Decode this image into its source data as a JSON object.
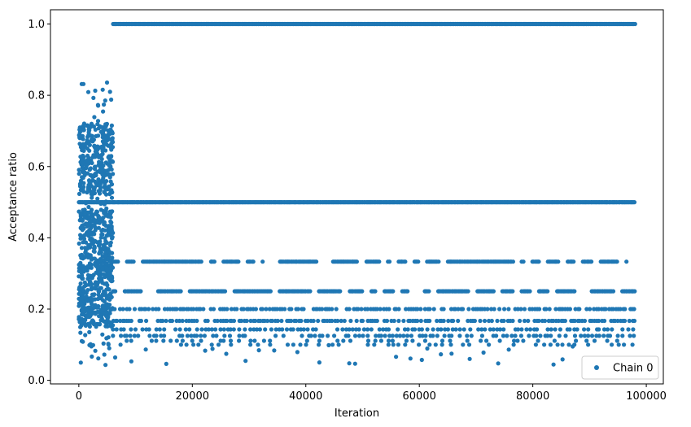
{
  "chart_data": {
    "type": "scatter",
    "title": "",
    "xlabel": "Iteration",
    "ylabel": "Acceptance ratio",
    "xlim": [
      -5000,
      103000
    ],
    "ylim": [
      -0.01,
      1.04
    ],
    "xticks": [
      0,
      20000,
      40000,
      60000,
      80000,
      100000
    ],
    "xtick_labels": [
      "0",
      "20000",
      "40000",
      "60000",
      "80000",
      "100000"
    ],
    "yticks": [
      0.0,
      0.2,
      0.4,
      0.6,
      0.8,
      1.0
    ],
    "ytick_labels": [
      "0.0",
      "0.2",
      "0.4",
      "0.6",
      "0.8",
      "1.0"
    ],
    "grid": false,
    "legend_position": "lower right",
    "color": "#1f77b4",
    "series": [
      {
        "name": "Chain 0",
        "marker": "circle",
        "segments": [
          {
            "x_range": [
              0,
              6000
            ],
            "distribution": "dense-uniform",
            "y_range": [
              0.04,
              0.84
            ]
          },
          {
            "x_range": [
              6000,
              98000
            ],
            "y": 1.0,
            "density": "continuous"
          },
          {
            "x_range": [
              0,
              98000
            ],
            "y": 0.5,
            "density": "continuous"
          },
          {
            "x_range": [
              6000,
              98000
            ],
            "y": 0.333,
            "density": "dense-with-gaps"
          },
          {
            "x_range": [
              6000,
              98000
            ],
            "y": 0.25,
            "density": "dense-with-gaps"
          },
          {
            "x_range": [
              6000,
              98000
            ],
            "y": 0.2,
            "density": "frequent"
          },
          {
            "x_range": [
              6000,
              98000
            ],
            "y": 0.167,
            "density": "frequent"
          },
          {
            "x_range": [
              6000,
              98000
            ],
            "y": 0.143,
            "density": "moderate"
          },
          {
            "x_range": [
              6000,
              98000
            ],
            "y": 0.125,
            "density": "moderate"
          },
          {
            "x_range": [
              6000,
              98000
            ],
            "y": 0.111,
            "density": "sparse"
          },
          {
            "x_range": [
              6000,
              98000
            ],
            "y": 0.1,
            "density": "sparse"
          },
          {
            "x_range": [
              6000,
              98000
            ],
            "y_range": [
              0.04,
              0.1
            ],
            "density": "rare"
          }
        ]
      }
    ]
  }
}
